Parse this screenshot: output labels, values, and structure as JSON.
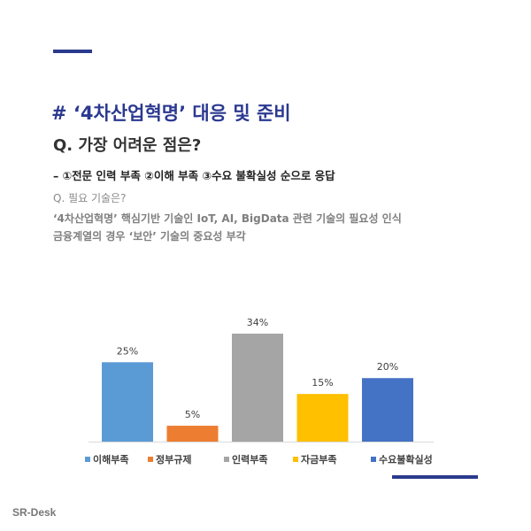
{
  "header": {
    "title": "# ‘4차산업혁명’ 대응 및 준비",
    "question": "Q. 가장 어려운 점은?",
    "answer": "– ①전문 인력 부족 ②이해 부족 ③수요 불확실성 순으로 응답",
    "sub_question": "Q. 필요 기술은?",
    "note_line1": "‘4차산업혁명’ 핵심기반 기술인 IoT, AI, BigData 관련 기술의 필요성 인식",
    "note_line2": "금융계열의 경우 ‘보안’ 기술의 중요성 부각"
  },
  "chart_data": {
    "type": "bar",
    "categories": [
      "이해부족",
      "정부규제",
      "인력부족",
      "자금부족",
      "수요불확실성"
    ],
    "values": [
      25,
      5,
      34,
      15,
      20
    ],
    "data_labels": [
      "25%",
      "5%",
      "34%",
      "15%",
      "20%"
    ],
    "colors": [
      "#5b9bd5",
      "#ed7d31",
      "#a5a5a5",
      "#ffc000",
      "#4472c4"
    ],
    "ylim": [
      0,
      34
    ],
    "grid": false,
    "legend_position": "bottom",
    "title": "",
    "xlabel": "",
    "ylabel": ""
  },
  "footer": {
    "credit": "SR-Desk"
  },
  "colors": {
    "accent": "#2a3a8c",
    "title": "#2b3990"
  }
}
